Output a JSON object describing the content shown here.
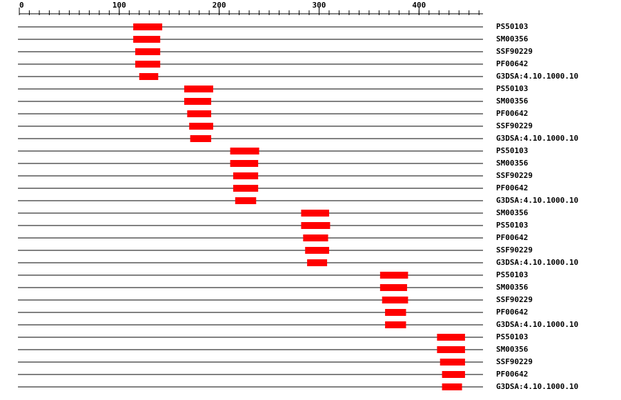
{
  "chart_data": {
    "type": "domain-map",
    "xlim": [
      0,
      464
    ],
    "xticks": [
      0,
      100,
      200,
      300,
      400
    ],
    "minor_tick_step": 10,
    "bar_color": "#ff0000",
    "rows": [
      {
        "name": "PS50103",
        "start": 114,
        "end": 143
      },
      {
        "name": "SM00356",
        "start": 114,
        "end": 141
      },
      {
        "name": "SSF90229",
        "start": 116,
        "end": 141
      },
      {
        "name": "PF00642",
        "start": 116,
        "end": 141
      },
      {
        "name": "G3DSA:4.10.1000.10",
        "start": 120,
        "end": 139
      },
      {
        "name": "PS50103",
        "start": 165,
        "end": 194
      },
      {
        "name": "SM00356",
        "start": 165,
        "end": 192
      },
      {
        "name": "PF00642",
        "start": 168,
        "end": 192
      },
      {
        "name": "SSF90229",
        "start": 170,
        "end": 194
      },
      {
        "name": "G3DSA:4.10.1000.10",
        "start": 171,
        "end": 192
      },
      {
        "name": "PS50103",
        "start": 211,
        "end": 240
      },
      {
        "name": "SM00356",
        "start": 211,
        "end": 239
      },
      {
        "name": "SSF90229",
        "start": 214,
        "end": 239
      },
      {
        "name": "PF00642",
        "start": 214,
        "end": 239
      },
      {
        "name": "G3DSA:4.10.1000.10",
        "start": 216,
        "end": 237
      },
      {
        "name": "SM00356",
        "start": 282,
        "end": 310
      },
      {
        "name": "PS50103",
        "start": 282,
        "end": 311
      },
      {
        "name": "PF00642",
        "start": 284,
        "end": 309
      },
      {
        "name": "SSF90229",
        "start": 286,
        "end": 310
      },
      {
        "name": "G3DSA:4.10.1000.10",
        "start": 288,
        "end": 308
      },
      {
        "name": "PS50103",
        "start": 361,
        "end": 389
      },
      {
        "name": "SM00356",
        "start": 361,
        "end": 388
      },
      {
        "name": "SSF90229",
        "start": 363,
        "end": 389
      },
      {
        "name": "PF00642",
        "start": 366,
        "end": 387
      },
      {
        "name": "G3DSA:4.10.1000.10",
        "start": 366,
        "end": 387
      },
      {
        "name": "PS50103",
        "start": 418,
        "end": 446
      },
      {
        "name": "SM00356",
        "start": 418,
        "end": 446
      },
      {
        "name": "SSF90229",
        "start": 421,
        "end": 446
      },
      {
        "name": "PF00642",
        "start": 423,
        "end": 446
      },
      {
        "name": "G3DSA:4.10.1000.10",
        "start": 423,
        "end": 443
      }
    ]
  }
}
